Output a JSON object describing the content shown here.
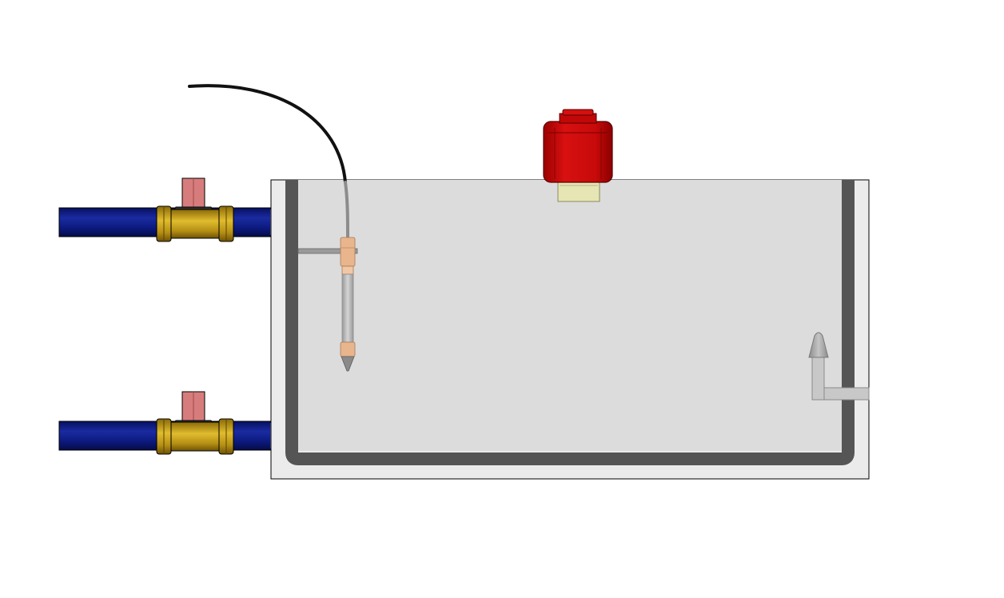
{
  "title": "",
  "colors": {
    "background": "#ffffff",
    "enclosure_fill": "#ebebeb",
    "tank_fill": "#dcdcdc",
    "tank_wall": "#555555",
    "pipe": "#0c1a7e",
    "valve_body": "#c9a21a",
    "valve_handle": "#d77c7c",
    "cable": "#111111",
    "probe_fitting": "#e8b58c",
    "red_device": "#cc0a0a",
    "device_base": "#e6e6b4",
    "outlet_fitting": "#a8a8a8"
  },
  "components": [
    {
      "name": "enclosure",
      "label": ""
    },
    {
      "name": "tank-liner",
      "label": ""
    },
    {
      "name": "inlet-pipe-top",
      "label": ""
    },
    {
      "name": "inlet-pipe-bottom",
      "label": ""
    },
    {
      "name": "ball-valve-top",
      "label": ""
    },
    {
      "name": "ball-valve-bottom",
      "label": ""
    },
    {
      "name": "sensor-cable",
      "label": ""
    },
    {
      "name": "immersion-probe",
      "label": ""
    },
    {
      "name": "probe-mount-bracket",
      "label": ""
    },
    {
      "name": "red-level-device",
      "label": ""
    },
    {
      "name": "outlet-elbow-fitting",
      "label": ""
    }
  ]
}
